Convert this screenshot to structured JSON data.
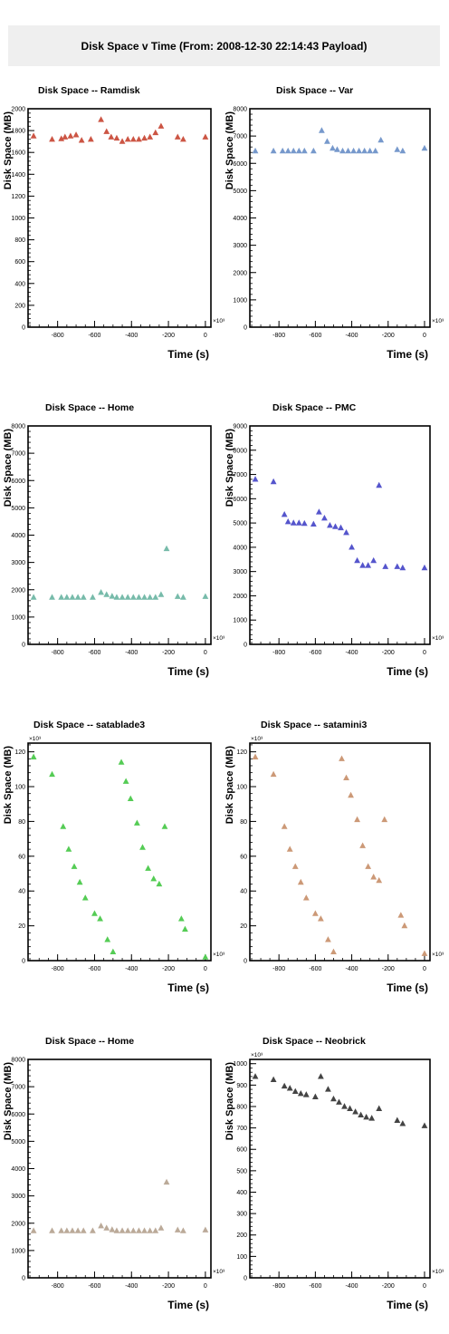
{
  "page": {
    "title": "Disk Space v Time (From: 2008-12-30 22:14:43 Payload)"
  },
  "chart_data": [
    {
      "type": "scatter",
      "title": "Disk Space -- Ramdisk",
      "xlabel": "Time (s)",
      "ylabel": "Disk Space (MB)",
      "color": "#cc5544",
      "x_multiplier": "×10³",
      "y_multiplier": "",
      "xlim": [
        -960,
        30
      ],
      "ylim": [
        0,
        2000
      ],
      "xticks": [
        -800,
        -600,
        -400,
        -200,
        0
      ],
      "yticks": [
        0,
        200,
        400,
        600,
        800,
        1000,
        1200,
        1400,
        1600,
        1800,
        2000
      ],
      "x": [
        -930,
        -830,
        -780,
        -760,
        -730,
        -700,
        -670,
        -620,
        -565,
        -535,
        -510,
        -480,
        -450,
        -420,
        -390,
        -360,
        -330,
        -300,
        -270,
        -240,
        -150,
        -120,
        0
      ],
      "y": [
        1750,
        1720,
        1725,
        1740,
        1750,
        1760,
        1710,
        1720,
        1900,
        1790,
        1740,
        1730,
        1700,
        1720,
        1720,
        1720,
        1730,
        1740,
        1780,
        1840,
        1740,
        1720,
        1740
      ]
    },
    {
      "type": "scatter",
      "title": "Disk Space -- Var",
      "xlabel": "Time (s)",
      "ylabel": "Disk Space (MB)",
      "color": "#7799cc",
      "x_multiplier": "×10³",
      "y_multiplier": "",
      "xlim": [
        -960,
        30
      ],
      "ylim": [
        0,
        8000
      ],
      "xticks": [
        -800,
        -600,
        -400,
        -200,
        0
      ],
      "yticks": [
        0,
        1000,
        2000,
        3000,
        4000,
        5000,
        6000,
        7000,
        8000
      ],
      "x": [
        -930,
        -830,
        -780,
        -750,
        -720,
        -690,
        -660,
        -610,
        -565,
        -535,
        -505,
        -480,
        -450,
        -420,
        -390,
        -360,
        -330,
        -300,
        -270,
        -240,
        -150,
        -120,
        0
      ],
      "y": [
        6450,
        6450,
        6450,
        6450,
        6450,
        6450,
        6450,
        6450,
        7200,
        6800,
        6550,
        6500,
        6450,
        6450,
        6450,
        6450,
        6450,
        6450,
        6450,
        6850,
        6500,
        6450,
        6550
      ]
    },
    {
      "type": "scatter",
      "title": "Disk Space -- Home",
      "xlabel": "Time (s)",
      "ylabel": "Disk Space (MB)",
      "color": "#77bbaa",
      "x_multiplier": "×10³",
      "y_multiplier": "",
      "xlim": [
        -960,
        30
      ],
      "ylim": [
        0,
        8000
      ],
      "xticks": [
        -800,
        -600,
        -400,
        -200,
        0
      ],
      "yticks": [
        0,
        1000,
        2000,
        3000,
        4000,
        5000,
        6000,
        7000,
        8000
      ],
      "x": [
        -930,
        -830,
        -780,
        -750,
        -720,
        -690,
        -660,
        -610,
        -565,
        -535,
        -505,
        -480,
        -450,
        -420,
        -390,
        -360,
        -330,
        -300,
        -270,
        -240,
        -210,
        -150,
        -120,
        0
      ],
      "y": [
        1720,
        1720,
        1720,
        1720,
        1720,
        1720,
        1720,
        1720,
        1900,
        1820,
        1760,
        1720,
        1720,
        1720,
        1720,
        1720,
        1720,
        1720,
        1720,
        1820,
        3500,
        1750,
        1720,
        1750
      ]
    },
    {
      "type": "scatter",
      "title": "Disk Space -- PMC",
      "xlabel": "Time (s)",
      "ylabel": "Disk Space (MB)",
      "color": "#5555cc",
      "x_multiplier": "×10³",
      "y_multiplier": "",
      "xlim": [
        -960,
        30
      ],
      "ylim": [
        0,
        9000
      ],
      "xticks": [
        -800,
        -600,
        -400,
        -200,
        0
      ],
      "yticks": [
        0,
        1000,
        2000,
        3000,
        4000,
        5000,
        6000,
        7000,
        8000,
        9000
      ],
      "x": [
        -930,
        -830,
        -770,
        -750,
        -720,
        -690,
        -660,
        -610,
        -580,
        -550,
        -520,
        -490,
        -460,
        -430,
        -400,
        -370,
        -340,
        -310,
        -280,
        -250,
        -215,
        -150,
        -120,
        0
      ],
      "y": [
        6800,
        6700,
        5350,
        5050,
        5000,
        5000,
        4980,
        4950,
        5450,
        5200,
        4900,
        4850,
        4800,
        4600,
        4000,
        3450,
        3250,
        3250,
        3450,
        6550,
        3200,
        3200,
        3150,
        3150
      ]
    },
    {
      "type": "scatter",
      "title": "Disk Space -- satablade3",
      "xlabel": "Time (s)",
      "ylabel": "Disk Space (MB)",
      "color": "#55cc55",
      "x_multiplier": "×10³",
      "y_multiplier": "×10³",
      "xlim": [
        -960,
        30
      ],
      "ylim": [
        0,
        125
      ],
      "xticks": [
        -800,
        -600,
        -400,
        -200,
        0
      ],
      "yticks": [
        0,
        20,
        40,
        60,
        80,
        100,
        120
      ],
      "x": [
        -930,
        -830,
        -770,
        -740,
        -710,
        -680,
        -650,
        -600,
        -570,
        -530,
        -500,
        -455,
        -430,
        -405,
        -370,
        -340,
        -310,
        -280,
        -250,
        -220,
        -130,
        -110,
        0
      ],
      "y": [
        117,
        107,
        77,
        64,
        54,
        45,
        36,
        27,
        24,
        12,
        5,
        114,
        103,
        93,
        79,
        65,
        53,
        47,
        44,
        77,
        24,
        18,
        2
      ]
    },
    {
      "type": "scatter",
      "title": "Disk Space -- satamini3",
      "xlabel": "Time (s)",
      "ylabel": "Disk Space (MB)",
      "color": "#cc9977",
      "x_multiplier": "×10³",
      "y_multiplier": "×10³",
      "xlim": [
        -960,
        30
      ],
      "ylim": [
        0,
        125
      ],
      "xticks": [
        -800,
        -600,
        -400,
        -200,
        0
      ],
      "yticks": [
        0,
        20,
        40,
        60,
        80,
        100,
        120
      ],
      "x": [
        -930,
        -830,
        -770,
        -740,
        -710,
        -680,
        -650,
        -600,
        -570,
        -530,
        -500,
        -455,
        -430,
        -405,
        -370,
        -340,
        -310,
        -280,
        -250,
        -220,
        -130,
        -110,
        0
      ],
      "y": [
        117,
        107,
        77,
        64,
        54,
        45,
        36,
        27,
        24,
        12,
        5,
        116,
        105,
        95,
        81,
        66,
        54,
        48,
        46,
        81,
        26,
        20,
        4
      ]
    },
    {
      "type": "scatter",
      "title": "Disk Space -- Home",
      "xlabel": "Time (s)",
      "ylabel": "Disk Space (MB)",
      "color": "#bbaa99",
      "x_multiplier": "×10³",
      "y_multiplier": "",
      "xlim": [
        -960,
        30
      ],
      "ylim": [
        0,
        8000
      ],
      "xticks": [
        -800,
        -600,
        -400,
        -200,
        0
      ],
      "yticks": [
        0,
        1000,
        2000,
        3000,
        4000,
        5000,
        6000,
        7000,
        8000
      ],
      "x": [
        -930,
        -830,
        -780,
        -750,
        -720,
        -690,
        -660,
        -610,
        -565,
        -535,
        -505,
        -480,
        -450,
        -420,
        -390,
        -360,
        -330,
        -300,
        -270,
        -240,
        -210,
        -150,
        -120,
        0
      ],
      "y": [
        1720,
        1720,
        1720,
        1720,
        1720,
        1720,
        1720,
        1720,
        1900,
        1820,
        1760,
        1720,
        1720,
        1720,
        1720,
        1720,
        1720,
        1720,
        1720,
        1820,
        3500,
        1750,
        1720,
        1750
      ]
    },
    {
      "type": "scatter",
      "title": "Disk Space -- Neobrick",
      "xlabel": "Time (s)",
      "ylabel": "Disk Space (MB)",
      "color": "#444444",
      "x_multiplier": "×10³",
      "y_multiplier": "×10³",
      "xlim": [
        -960,
        30
      ],
      "ylim": [
        0,
        1020
      ],
      "xticks": [
        -800,
        -600,
        -400,
        -200,
        0
      ],
      "yticks": [
        0,
        100,
        200,
        300,
        400,
        500,
        600,
        700,
        800,
        900,
        1000
      ],
      "x": [
        -930,
        -830,
        -770,
        -740,
        -710,
        -680,
        -650,
        -600,
        -570,
        -530,
        -500,
        -470,
        -440,
        -410,
        -380,
        -350,
        -320,
        -290,
        -250,
        -150,
        -120,
        0
      ],
      "y": [
        940,
        925,
        895,
        885,
        870,
        860,
        855,
        845,
        940,
        880,
        835,
        820,
        800,
        790,
        775,
        760,
        750,
        745,
        790,
        735,
        720,
        710
      ]
    }
  ]
}
